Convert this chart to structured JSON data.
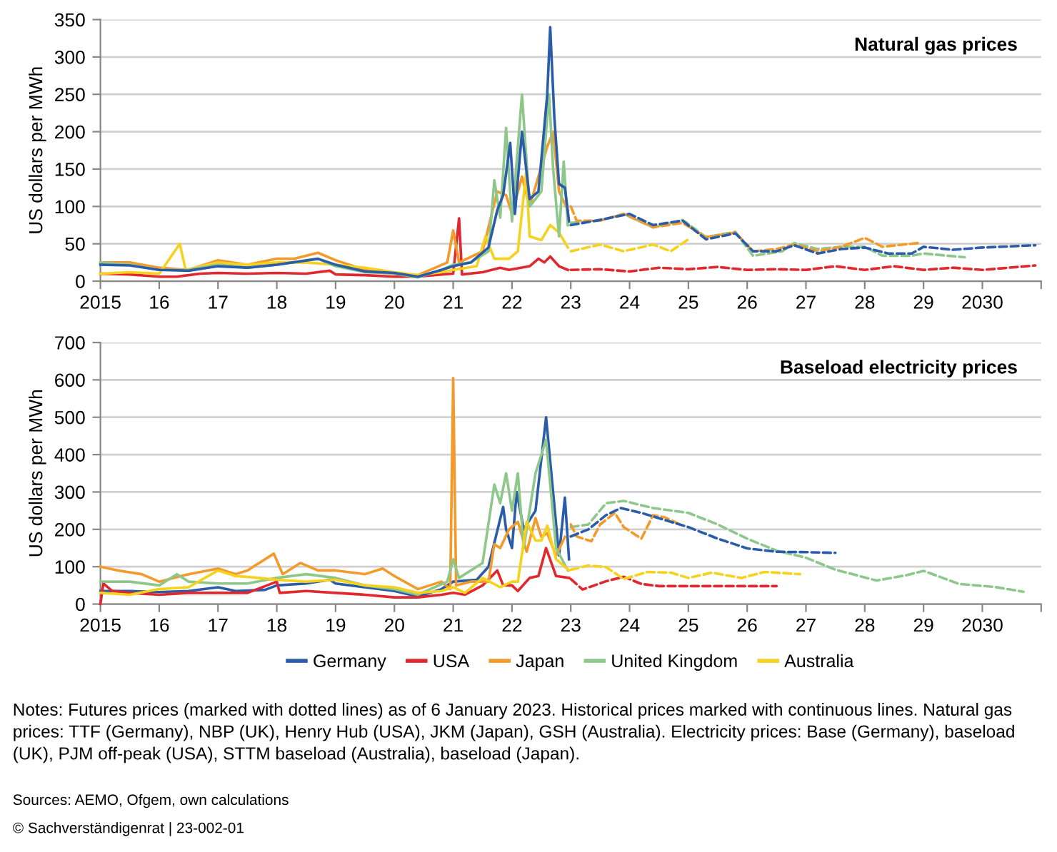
{
  "chart_data": [
    {
      "type": "line",
      "title": "Natural gas prices",
      "ylabel": "US dollars per MWh",
      "ylim": [
        0,
        350
      ],
      "yticks": [
        0,
        50,
        100,
        150,
        200,
        250,
        300,
        350
      ],
      "xlim": [
        2015,
        2031
      ],
      "xticks": [
        2015,
        {
          "value": 2016,
          "label": "16"
        },
        {
          "value": 2017,
          "label": "17"
        },
        {
          "value": 2018,
          "label": "18"
        },
        {
          "value": 2019,
          "label": "19"
        },
        {
          "value": 2020,
          "label": "20"
        },
        {
          "value": 2021,
          "label": "21"
        },
        {
          "value": 2022,
          "label": "22"
        },
        {
          "value": 2023,
          "label": "23"
        },
        {
          "value": 2024,
          "label": "24"
        },
        {
          "value": 2025,
          "label": "25"
        },
        {
          "value": 2026,
          "label": "26"
        },
        {
          "value": 2027,
          "label": "27"
        },
        {
          "value": 2028,
          "label": "28"
        },
        {
          "value": 2029,
          "label": "29"
        },
        2030,
        {
          "value": 2031,
          "label": null
        }
      ],
      "grid": "y",
      "legend": false,
      "series": [
        {
          "color": "#e0282e",
          "line_style": "solid",
          "x": [
            2015,
            2015.5,
            2016,
            2016.3,
            2016.7,
            2017,
            2017.5,
            2018,
            2018.5,
            2018.9,
            2019,
            2019.5,
            2020,
            2020.4,
            2020.8,
            2021.0,
            2021.1,
            2021.15,
            2021.5,
            2021.8,
            2021.95,
            2022.3,
            2022.45,
            2022.55,
            2022.65,
            2022.8,
            2022.95
          ],
          "values": [
            10,
            9,
            6,
            6,
            10,
            11,
            10,
            11,
            10,
            14,
            9,
            8,
            6,
            6,
            9,
            10,
            84,
            9,
            12,
            18,
            15,
            20,
            30,
            25,
            33,
            20,
            15
          ]
        },
        {
          "color": "#f39a2b",
          "line_style": "solid",
          "x": [
            2015,
            2015.5,
            2016,
            2016.5,
            2017,
            2017.5,
            2018,
            2018.3,
            2018.7,
            2019,
            2019.5,
            2020,
            2020.4,
            2020.9,
            2021.0,
            2021.1,
            2021.5,
            2021.75,
            2021.9,
            2022.0,
            2022.17,
            2022.3,
            2022.6,
            2022.7,
            2022.8,
            2022.95
          ],
          "values": [
            25,
            25,
            18,
            15,
            28,
            22,
            30,
            30,
            38,
            28,
            15,
            10,
            8,
            25,
            68,
            25,
            40,
            120,
            115,
            90,
            140,
            100,
            180,
            200,
            120,
            95
          ]
        },
        {
          "color": "#f6d21c",
          "line_style": "solid",
          "x": [
            2015,
            2015.5,
            2016,
            2016.35,
            2016.45,
            2017,
            2017.5,
            2018,
            2018.5,
            2019,
            2019.5,
            2020,
            2020.4,
            2020.8,
            2021.0,
            2021.4,
            2021.55,
            2021.7,
            2021.95,
            2022.1,
            2022.24,
            2022.3,
            2022.5,
            2022.65,
            2022.8,
            2022.95
          ],
          "values": [
            10,
            12,
            10,
            50,
            15,
            25,
            22,
            25,
            25,
            22,
            18,
            12,
            8,
            12,
            15,
            20,
            60,
            30,
            30,
            40,
            145,
            60,
            55,
            75,
            65,
            45
          ]
        },
        {
          "color": "#8dc88a",
          "line_style": "solid",
          "x": [
            2015,
            2015.5,
            2016,
            2016.5,
            2017,
            2017.5,
            2018,
            2018.7,
            2019,
            2019.5,
            2020,
            2020.4,
            2020.8,
            2021.0,
            2021.3,
            2021.6,
            2021.7,
            2021.8,
            2021.9,
            2022.0,
            2022.17,
            2022.3,
            2022.5,
            2022.63,
            2022.7,
            2022.8,
            2022.88,
            2022.95
          ],
          "values": [
            25,
            22,
            15,
            15,
            22,
            18,
            22,
            30,
            20,
            12,
            10,
            5,
            15,
            22,
            25,
            40,
            135,
            85,
            205,
            80,
            250,
            100,
            120,
            250,
            150,
            60,
            160,
            75
          ]
        },
        {
          "color": "#2a5caa",
          "line_style": "solid",
          "x": [
            2015,
            2015.5,
            2016,
            2016.5,
            2017,
            2017.5,
            2018,
            2018.7,
            2019,
            2019.5,
            2020,
            2020.4,
            2020.8,
            2021.0,
            2021.3,
            2021.6,
            2021.75,
            2021.85,
            2021.97,
            2022.05,
            2022.17,
            2022.3,
            2022.45,
            2022.6,
            2022.65,
            2022.72,
            2022.8,
            2022.9,
            2022.97
          ],
          "values": [
            22,
            21,
            15,
            14,
            20,
            18,
            22,
            30,
            22,
            13,
            11,
            6,
            15,
            20,
            25,
            45,
            95,
            115,
            185,
            90,
            200,
            110,
            120,
            250,
            340,
            220,
            130,
            125,
            80
          ]
        },
        {
          "color": "#e0282e",
          "line_style": "dashed",
          "x": [
            2023.0,
            2023.5,
            2024.0,
            2024.5,
            2025.0,
            2025.5,
            2026.0,
            2026.5,
            2027.0,
            2027.5,
            2028.0,
            2028.5,
            2029.0,
            2029.5,
            2030.0,
            2030.9
          ],
          "values": [
            15,
            16,
            13,
            18,
            16,
            19,
            15,
            16,
            15,
            20,
            15,
            20,
            15,
            18,
            15,
            21
          ]
        },
        {
          "color": "#f6d21c",
          "line_style": "dashed",
          "x": [
            2023.0,
            2023.5,
            2023.9,
            2024.4,
            2024.7,
            2025.0
          ],
          "values": [
            40,
            49,
            40,
            49,
            40,
            56
          ]
        },
        {
          "color": "#8dc88a",
          "line_style": "dashed",
          "x": [
            2023.0,
            2023.5,
            2023.9,
            2024.4,
            2024.9,
            2025.3,
            2025.8,
            2026.1,
            2026.6,
            2026.8,
            2027.2,
            2027.6,
            2028.0,
            2028.3,
            2028.8,
            2029.0,
            2029.7
          ],
          "values": [
            78,
            81,
            90,
            72,
            82,
            59,
            66,
            34,
            40,
            51,
            43,
            46,
            46,
            34,
            34,
            37,
            32
          ]
        },
        {
          "color": "#f39a2b",
          "line_style": "dashed",
          "x": [
            2023.0,
            2023.1,
            2023.5,
            2023.9,
            2024.4,
            2024.9,
            2025.3,
            2025.8,
            2026.1,
            2026.5,
            2026.8,
            2027.2,
            2027.6,
            2028.0,
            2028.3,
            2028.9
          ],
          "values": [
            100,
            81,
            81,
            90,
            72,
            78,
            59,
            65,
            40,
            43,
            49,
            40,
            46,
            58,
            46,
            51
          ]
        },
        {
          "color": "#2a5caa",
          "line_style": "dashed",
          "x": [
            2023.0,
            2023.5,
            2024.0,
            2024.4,
            2024.9,
            2025.3,
            2025.8,
            2026.1,
            2026.5,
            2026.8,
            2027.2,
            2027.6,
            2028.0,
            2028.4,
            2028.8,
            2029.0,
            2029.5,
            2030.0,
            2030.9
          ],
          "values": [
            75,
            82,
            90,
            75,
            81,
            56,
            64,
            40,
            40,
            48,
            37,
            43,
            45,
            37,
            37,
            46,
            42,
            45,
            48
          ]
        }
      ]
    },
    {
      "type": "line",
      "title": "Baseload electricity prices",
      "ylabel": "US dollars per MWh",
      "ylim": [
        0,
        700
      ],
      "yticks": [
        0,
        100,
        200,
        300,
        400,
        500,
        600,
        700
      ],
      "xlim": [
        2015,
        2031
      ],
      "xticks": [
        2015,
        {
          "value": 2016,
          "label": "16"
        },
        {
          "value": 2017,
          "label": "17"
        },
        {
          "value": 2018,
          "label": "18"
        },
        {
          "value": 2019,
          "label": "19"
        },
        {
          "value": 2020,
          "label": "20"
        },
        {
          "value": 2021,
          "label": "21"
        },
        {
          "value": 2022,
          "label": "22"
        },
        {
          "value": 2023,
          "label": "23"
        },
        {
          "value": 2024,
          "label": "24"
        },
        {
          "value": 2025,
          "label": "25"
        },
        {
          "value": 2026,
          "label": "26"
        },
        {
          "value": 2027,
          "label": "27"
        },
        {
          "value": 2028,
          "label": "28"
        },
        {
          "value": 2029,
          "label": "29"
        },
        2030,
        {
          "value": 2031,
          "label": null
        }
      ],
      "grid": "y",
      "legend": "bottom",
      "annotations": [
        "Notes: Futures prices (marked with dotted lines) as of 6 January 2023. Historical prices marked with continuous lines. Natural gas prices: TTF (Germany), NBP (UK), Henry Hub (USA), JKM (Japan), GSH (Australia). Electricity prices: Base (Germany), baseload (UK), PJM off-peak (USA), STTM baseload (Australia), baseload (Japan).",
        "Sources: AEMO, Ofgem, own calculations",
        "© Sachverständigenrat | 23-002-01"
      ],
      "series": [
        {
          "name": "Germany",
          "color": "#2a5caa",
          "line_style": "solid",
          "x": [
            2015,
            2015.5,
            2016,
            2016.5,
            2017,
            2017.3,
            2017.8,
            2018.0,
            2018.5,
            2018.9,
            2019.0,
            2019.5,
            2020,
            2020.4,
            2020.8,
            2021.0,
            2021.4,
            2021.6,
            2021.85,
            2021.9,
            2022.0,
            2022.08,
            2022.2,
            2022.4,
            2022.58,
            2022.8,
            2022.9,
            2022.97
          ],
          "values": [
            35,
            35,
            32,
            35,
            45,
            35,
            38,
            50,
            55,
            65,
            55,
            45,
            35,
            20,
            40,
            60,
            65,
            100,
            260,
            200,
            150,
            300,
            200,
            250,
            500,
            130,
            285,
            120
          ]
        },
        {
          "name": "USA",
          "color": "#e0282e",
          "line_style": "solid",
          "x": [
            2015,
            2015.05,
            2015.2,
            2015.5,
            2016,
            2016.5,
            2017,
            2017.5,
            2018.0,
            2018.05,
            2018.5,
            2019,
            2019.5,
            2020,
            2020.4,
            2020.8,
            2021.0,
            2021.2,
            2021.5,
            2021.75,
            2021.85,
            2022.0,
            2022.1,
            2022.3,
            2022.45,
            2022.58,
            2022.75,
            2022.97
          ],
          "values": [
            0,
            55,
            35,
            30,
            25,
            30,
            30,
            30,
            60,
            30,
            35,
            30,
            25,
            18,
            18,
            25,
            30,
            25,
            50,
            90,
            50,
            50,
            35,
            70,
            75,
            150,
            75,
            70
          ]
        },
        {
          "name": "Japan",
          "color": "#f39a2b",
          "line_style": "solid",
          "x": [
            2015,
            2015.3,
            2015.7,
            2016,
            2016.5,
            2017.0,
            2017.3,
            2017.5,
            2017.95,
            2018.1,
            2018.4,
            2018.7,
            2019.0,
            2019.5,
            2019.8,
            2020.0,
            2020.4,
            2020.8,
            2020.95,
            2021.0,
            2021.05,
            2021.3,
            2021.6,
            2021.7,
            2021.8,
            2021.95,
            2022.1,
            2022.25,
            2022.4,
            2022.5,
            2022.6,
            2022.75,
            2022.9
          ],
          "values": [
            100,
            90,
            80,
            60,
            80,
            95,
            80,
            90,
            135,
            80,
            110,
            90,
            90,
            80,
            95,
            75,
            40,
            60,
            40,
            605,
            50,
            60,
            60,
            160,
            150,
            200,
            220,
            140,
            230,
            180,
            190,
            130,
            180
          ]
        },
        {
          "name": "United Kingdom",
          "color": "#8dc88a",
          "line_style": "solid",
          "x": [
            2015,
            2015.5,
            2016,
            2016.3,
            2016.5,
            2017,
            2017.5,
            2018,
            2018.5,
            2019.0,
            2019.5,
            2020,
            2020.4,
            2020.9,
            2021.0,
            2021.1,
            2021.5,
            2021.7,
            2021.8,
            2021.9,
            2022.0,
            2022.1,
            2022.2,
            2022.4,
            2022.58,
            2022.75,
            2022.95
          ],
          "values": [
            60,
            60,
            50,
            80,
            60,
            55,
            55,
            70,
            80,
            70,
            50,
            40,
            25,
            60,
            120,
            70,
            110,
            320,
            270,
            350,
            250,
            350,
            150,
            350,
            440,
            150,
            90
          ]
        },
        {
          "name": "Australia",
          "color": "#f6d21c",
          "line_style": "solid",
          "x": [
            2015,
            2015.5,
            2016,
            2016.5,
            2017.0,
            2017.3,
            2017.7,
            2018,
            2018.5,
            2019.0,
            2019.5,
            2020,
            2020.4,
            2020.8,
            2021.0,
            2021.2,
            2021.5,
            2021.8,
            2022.0,
            2022.1,
            2022.25,
            2022.4,
            2022.5,
            2022.6,
            2022.75,
            2022.97
          ],
          "values": [
            30,
            25,
            40,
            45,
            90,
            75,
            70,
            65,
            60,
            65,
            50,
            45,
            30,
            35,
            45,
            30,
            70,
            45,
            60,
            60,
            220,
            170,
            170,
            210,
            120,
            90
          ]
        },
        {
          "color": "#e0282e",
          "line_style": "dashed",
          "x": [
            2023.0,
            2023.2,
            2023.6,
            2023.9,
            2024.2,
            2024.5,
            2025.0,
            2025.5,
            2026.0,
            2026.5
          ],
          "values": [
            67,
            39,
            61,
            73,
            54,
            48,
            48,
            48,
            48,
            48
          ]
        },
        {
          "color": "#f6d21c",
          "line_style": "dashed",
          "x": [
            2023.0,
            2023.3,
            2023.6,
            2023.9,
            2024.3,
            2024.7,
            2025.0,
            2025.4,
            2025.9,
            2026.3,
            2026.9
          ],
          "values": [
            92,
            103,
            99,
            67,
            86,
            84,
            70,
            84,
            70,
            86,
            80
          ]
        },
        {
          "color": "#8dc88a",
          "line_style": "dashed",
          "x": [
            2023.0,
            2023.3,
            2023.6,
            2023.9,
            2024.4,
            2025.0,
            2025.5,
            2026.0,
            2026.5,
            2027.0,
            2027.5,
            2028.2,
            2028.7,
            2029.0,
            2029.6,
            2030.2,
            2030.7
          ],
          "values": [
            206,
            213,
            270,
            276,
            257,
            244,
            213,
            175,
            143,
            124,
            92,
            63,
            77,
            89,
            54,
            46,
            33
          ]
        },
        {
          "color": "#f39a2b",
          "line_style": "dashed",
          "x": [
            2023.0,
            2023.1,
            2023.35,
            2023.5,
            2023.75,
            2023.9,
            2024.2,
            2024.4,
            2024.6,
            2024.9
          ],
          "values": [
            213,
            181,
            168,
            213,
            244,
            206,
            175,
            238,
            232,
            210
          ]
        },
        {
          "color": "#2a5caa",
          "line_style": "dashed",
          "x": [
            2023.0,
            2023.3,
            2023.6,
            2023.85,
            2024.2,
            2024.6,
            2025.0,
            2025.5,
            2026.0,
            2026.5,
            2027.0,
            2027.5
          ],
          "values": [
            181,
            200,
            238,
            257,
            244,
            225,
            206,
            175,
            149,
            140,
            139,
            137
          ]
        }
      ]
    }
  ]
}
